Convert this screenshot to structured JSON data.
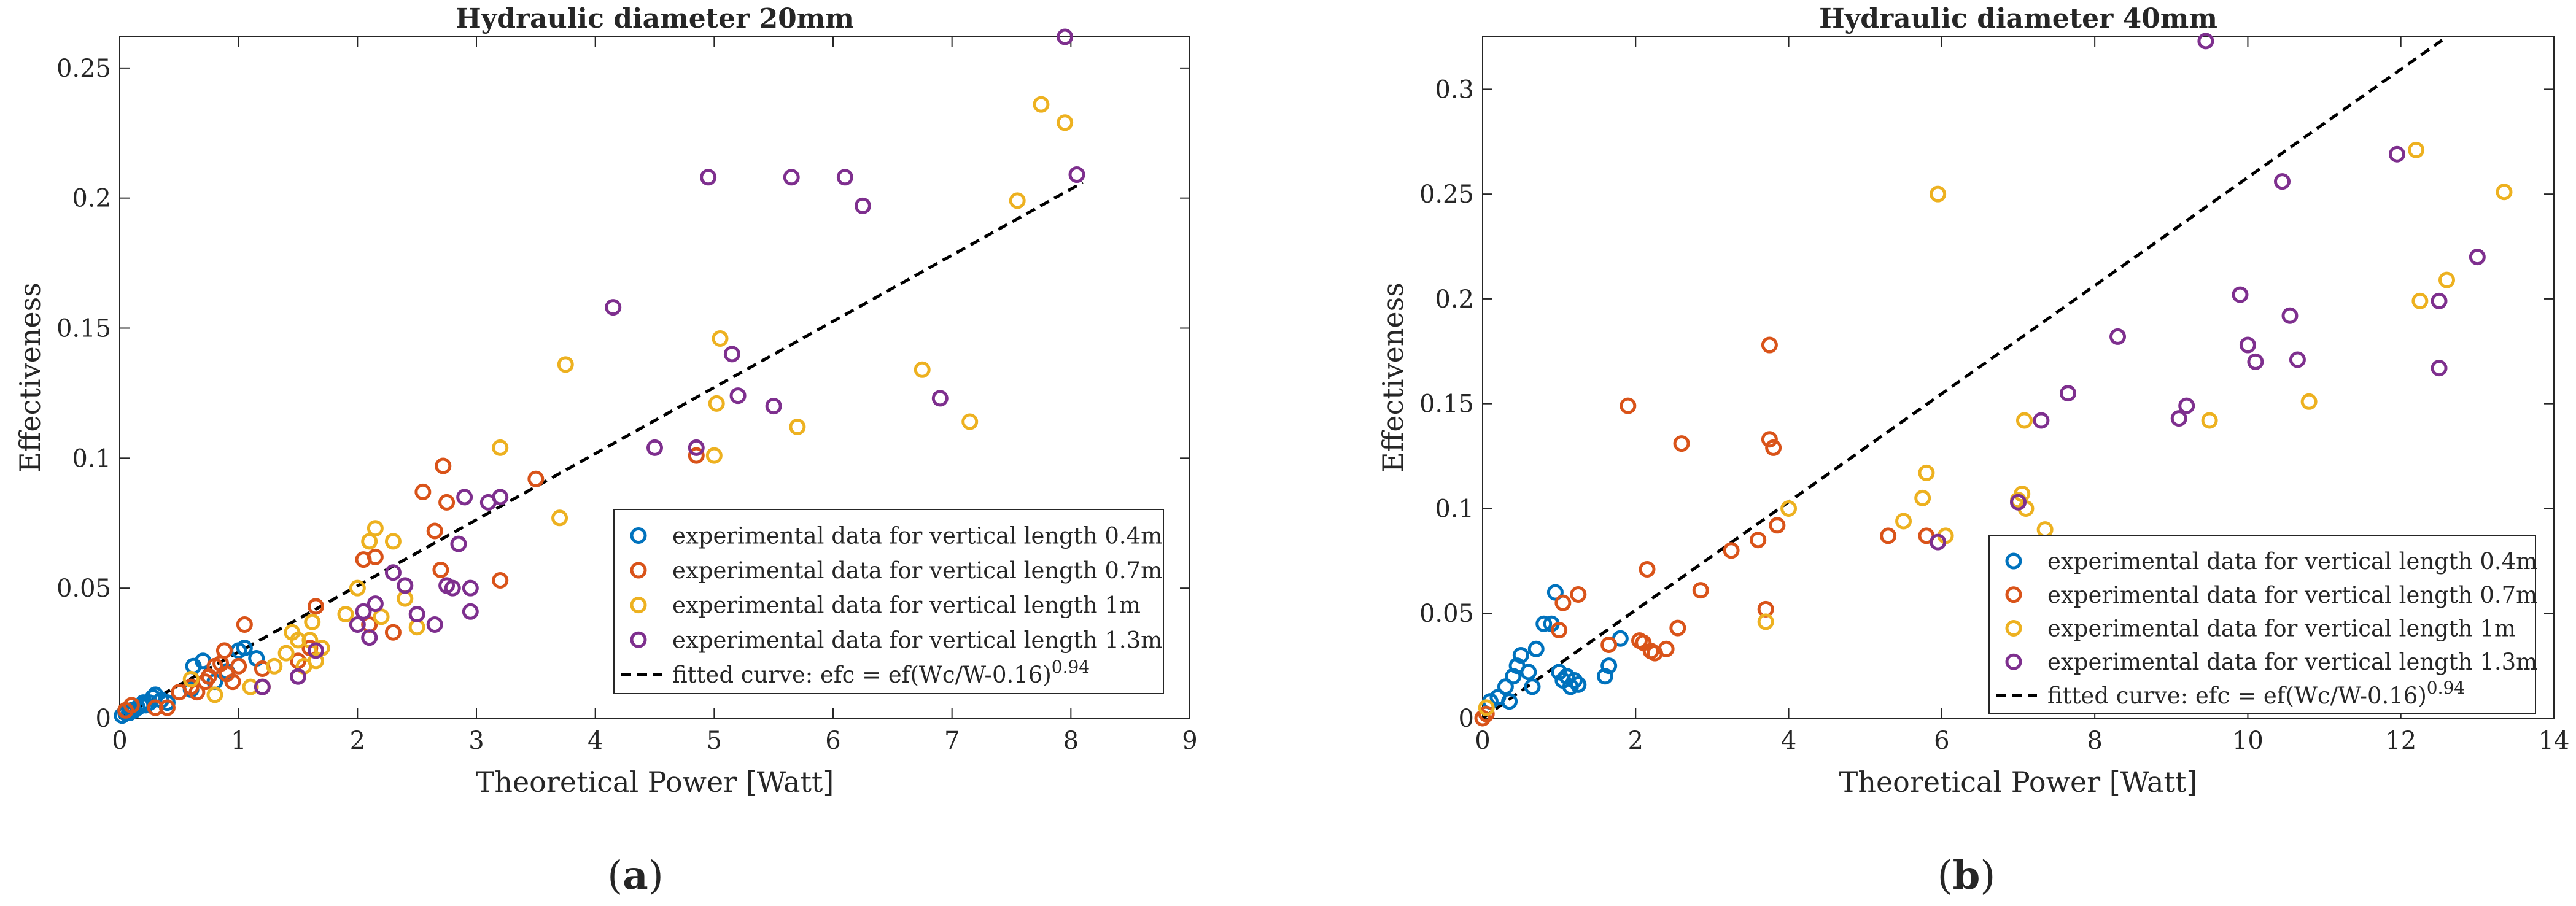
{
  "chart_data": [
    {
      "id": "a",
      "type": "scatter",
      "title": "Hydraulic diameter 20mm",
      "xlabel": "Theoretical Power [Watt]",
      "ylabel": "Effectiveness",
      "xlim": [
        0,
        9
      ],
      "ylim": [
        0,
        0.262
      ],
      "xticks": [
        0,
        1,
        2,
        3,
        4,
        5,
        6,
        7,
        8,
        9
      ],
      "xtick_labels": [
        "0",
        "1",
        "2",
        "3",
        "4",
        "5",
        "6",
        "7",
        "8",
        "9"
      ],
      "yticks": [
        0,
        0.05,
        0.1,
        0.15,
        0.2,
        0.25
      ],
      "ytick_labels": [
        "0",
        "0.05",
        "0.1",
        "0.15",
        "0.2",
        "0.25"
      ],
      "legend_position": "lower-right",
      "caption": {
        "open": "(",
        "letter": "a",
        "close": ")"
      },
      "series": [
        {
          "name": "experimental data for vertical length 0.4m",
          "color": "#0072BD",
          "points": [
            [
              0.02,
              0.001
            ],
            [
              0.05,
              0.002
            ],
            [
              0.08,
              0.002
            ],
            [
              0.1,
              0.003
            ],
            [
              0.12,
              0.003
            ],
            [
              0.15,
              0.004
            ],
            [
              0.18,
              0.005
            ],
            [
              0.2,
              0.006
            ],
            [
              0.22,
              0.005
            ],
            [
              0.25,
              0.006
            ],
            [
              0.28,
              0.008
            ],
            [
              0.3,
              0.009
            ],
            [
              0.35,
              0.007
            ],
            [
              0.4,
              0.006
            ],
            [
              0.6,
              0.011
            ],
            [
              0.62,
              0.02
            ],
            [
              0.7,
              0.022
            ],
            [
              0.75,
              0.016
            ],
            [
              0.8,
              0.014
            ],
            [
              0.9,
              0.018
            ],
            [
              1.0,
              0.026
            ],
            [
              1.05,
              0.027
            ],
            [
              1.15,
              0.023
            ]
          ]
        },
        {
          "name": "experimental data for vertical length 0.7m",
          "color": "#D95319",
          "points": [
            [
              0.05,
              0.003
            ],
            [
              0.1,
              0.005
            ],
            [
              0.3,
              0.004
            ],
            [
              0.4,
              0.004
            ],
            [
              0.5,
              0.01
            ],
            [
              0.6,
              0.012
            ],
            [
              0.65,
              0.01
            ],
            [
              0.72,
              0.014
            ],
            [
              0.75,
              0.016
            ],
            [
              0.8,
              0.02
            ],
            [
              0.85,
              0.021
            ],
            [
              0.88,
              0.026
            ],
            [
              0.9,
              0.017
            ],
            [
              0.95,
              0.014
            ],
            [
              1.0,
              0.02
            ],
            [
              1.05,
              0.036
            ],
            [
              1.2,
              0.019
            ],
            [
              1.5,
              0.022
            ],
            [
              1.6,
              0.027
            ],
            [
              1.65,
              0.043
            ],
            [
              2.05,
              0.061
            ],
            [
              2.1,
              0.036
            ],
            [
              2.15,
              0.062
            ],
            [
              2.3,
              0.033
            ],
            [
              2.55,
              0.087
            ],
            [
              2.65,
              0.072
            ],
            [
              2.7,
              0.057
            ],
            [
              2.72,
              0.097
            ],
            [
              2.75,
              0.083
            ],
            [
              3.2,
              0.053
            ],
            [
              3.5,
              0.092
            ],
            [
              4.85,
              0.101
            ]
          ]
        },
        {
          "name": "experimental data for vertical length 1m",
          "color": "#EDB120",
          "points": [
            [
              0.6,
              0.015
            ],
            [
              0.8,
              0.009
            ],
            [
              1.1,
              0.012
            ],
            [
              1.2,
              0.012
            ],
            [
              1.3,
              0.02
            ],
            [
              1.4,
              0.025
            ],
            [
              1.45,
              0.033
            ],
            [
              1.5,
              0.03
            ],
            [
              1.55,
              0.02
            ],
            [
              1.6,
              0.03
            ],
            [
              1.62,
              0.037
            ],
            [
              1.65,
              0.022
            ],
            [
              1.7,
              0.027
            ],
            [
              1.9,
              0.04
            ],
            [
              2.0,
              0.05
            ],
            [
              2.1,
              0.068
            ],
            [
              2.15,
              0.073
            ],
            [
              2.2,
              0.039
            ],
            [
              2.3,
              0.068
            ],
            [
              2.4,
              0.046
            ],
            [
              2.5,
              0.035
            ],
            [
              3.2,
              0.104
            ],
            [
              3.7,
              0.077
            ],
            [
              3.75,
              0.136
            ],
            [
              5.0,
              0.101
            ],
            [
              5.02,
              0.121
            ],
            [
              5.05,
              0.146
            ],
            [
              5.7,
              0.112
            ],
            [
              6.75,
              0.134
            ],
            [
              7.15,
              0.114
            ],
            [
              7.55,
              0.199
            ],
            [
              7.75,
              0.236
            ],
            [
              7.95,
              0.229
            ]
          ]
        },
        {
          "name": "experimental data for vertical length 1.3m",
          "color": "#7E2F8E",
          "points": [
            [
              1.2,
              0.012
            ],
            [
              1.5,
              0.016
            ],
            [
              1.65,
              0.026
            ],
            [
              2.0,
              0.036
            ],
            [
              2.05,
              0.041
            ],
            [
              2.1,
              0.031
            ],
            [
              2.15,
              0.044
            ],
            [
              2.3,
              0.056
            ],
            [
              2.4,
              0.051
            ],
            [
              2.5,
              0.04
            ],
            [
              2.65,
              0.036
            ],
            [
              2.75,
              0.051
            ],
            [
              2.8,
              0.05
            ],
            [
              2.85,
              0.067
            ],
            [
              2.9,
              0.085
            ],
            [
              2.95,
              0.041
            ],
            [
              2.95,
              0.05
            ],
            [
              3.1,
              0.083
            ],
            [
              3.2,
              0.085
            ],
            [
              4.15,
              0.158
            ],
            [
              4.5,
              0.104
            ],
            [
              4.85,
              0.104
            ],
            [
              4.95,
              0.208
            ],
            [
              5.15,
              0.14
            ],
            [
              5.2,
              0.124
            ],
            [
              5.5,
              0.12
            ],
            [
              5.65,
              0.208
            ],
            [
              6.1,
              0.208
            ],
            [
              6.25,
              0.197
            ],
            [
              6.9,
              0.123
            ],
            [
              7.95,
              0.262
            ],
            [
              8.05,
              0.209
            ]
          ]
        }
      ],
      "fitted_curve": {
        "label_prefix": "fitted curve: efc = ef(Wc/W-0.16)",
        "label_exponent": "0.94",
        "points": [
          [
            0,
            0
          ],
          [
            8.1,
            0.206
          ]
        ]
      }
    },
    {
      "id": "b",
      "type": "scatter",
      "title": "Hydraulic diameter 40mm",
      "xlabel": "Theoretical Power [Watt]",
      "ylabel": "Effectiveness",
      "xlim": [
        0,
        14
      ],
      "ylim": [
        0,
        0.325
      ],
      "xticks": [
        0,
        2,
        4,
        6,
        8,
        10,
        12,
        14
      ],
      "xtick_labels": [
        "0",
        "2",
        "4",
        "6",
        "8",
        "10",
        "12",
        "14"
      ],
      "yticks": [
        0,
        0.05,
        0.1,
        0.15,
        0.2,
        0.25,
        0.3
      ],
      "ytick_labels": [
        "0",
        "0.05",
        "0.1",
        "0.15",
        "0.2",
        "0.25",
        "0.3"
      ],
      "legend_position": "lower-right",
      "caption": {
        "open": "(",
        "letter": "b",
        "close": ")"
      },
      "series": [
        {
          "name": "experimental data for vertical length 0.4m",
          "color": "#0072BD",
          "points": [
            [
              0.1,
              0.008
            ],
            [
              0.2,
              0.01
            ],
            [
              0.3,
              0.015
            ],
            [
              0.35,
              0.008
            ],
            [
              0.4,
              0.02
            ],
            [
              0.45,
              0.025
            ],
            [
              0.5,
              0.03
            ],
            [
              0.6,
              0.022
            ],
            [
              0.65,
              0.015
            ],
            [
              0.7,
              0.033
            ],
            [
              0.8,
              0.045
            ],
            [
              0.9,
              0.045
            ],
            [
              0.95,
              0.06
            ],
            [
              1.0,
              0.022
            ],
            [
              1.05,
              0.018
            ],
            [
              1.1,
              0.02
            ],
            [
              1.15,
              0.015
            ],
            [
              1.2,
              0.018
            ],
            [
              1.25,
              0.016
            ],
            [
              1.6,
              0.02
            ],
            [
              1.65,
              0.025
            ],
            [
              1.8,
              0.038
            ]
          ]
        },
        {
          "name": "experimental data for vertical length 0.7m",
          "color": "#D95319",
          "points": [
            [
              0.0,
              0.0
            ],
            [
              0.05,
              0.002
            ],
            [
              1.0,
              0.042
            ],
            [
              1.05,
              0.055
            ],
            [
              1.25,
              0.059
            ],
            [
              1.65,
              0.035
            ],
            [
              1.9,
              0.149
            ],
            [
              2.05,
              0.037
            ],
            [
              2.1,
              0.036
            ],
            [
              2.15,
              0.071
            ],
            [
              2.2,
              0.032
            ],
            [
              2.25,
              0.031
            ],
            [
              2.4,
              0.033
            ],
            [
              2.55,
              0.043
            ],
            [
              2.6,
              0.131
            ],
            [
              2.85,
              0.061
            ],
            [
              3.25,
              0.08
            ],
            [
              3.6,
              0.085
            ],
            [
              3.7,
              0.052
            ],
            [
              3.75,
              0.133
            ],
            [
              3.75,
              0.178
            ],
            [
              3.8,
              0.129
            ],
            [
              3.85,
              0.092
            ],
            [
              5.3,
              0.087
            ],
            [
              5.8,
              0.087
            ]
          ]
        },
        {
          "name": "experimental data for vertical length 1m",
          "color": "#EDB120",
          "points": [
            [
              0.05,
              0.005
            ],
            [
              3.7,
              0.046
            ],
            [
              4.0,
              0.1
            ],
            [
              5.5,
              0.094
            ],
            [
              5.75,
              0.105
            ],
            [
              5.8,
              0.117
            ],
            [
              5.95,
              0.25
            ],
            [
              6.05,
              0.087
            ],
            [
              7.0,
              0.104
            ],
            [
              7.05,
              0.107
            ],
            [
              7.08,
              0.142
            ],
            [
              7.1,
              0.1
            ],
            [
              7.35,
              0.09
            ],
            [
              9.5,
              0.142
            ],
            [
              10.8,
              0.151
            ],
            [
              12.2,
              0.271
            ],
            [
              12.25,
              0.199
            ],
            [
              12.6,
              0.209
            ],
            [
              13.35,
              0.251
            ]
          ]
        },
        {
          "name": "experimental data for vertical length 1.3m",
          "color": "#7E2F8E",
          "points": [
            [
              5.95,
              0.084
            ],
            [
              7.0,
              0.103
            ],
            [
              7.3,
              0.142
            ],
            [
              7.65,
              0.155
            ],
            [
              8.3,
              0.182
            ],
            [
              9.1,
              0.143
            ],
            [
              9.2,
              0.149
            ],
            [
              9.45,
              0.323
            ],
            [
              9.9,
              0.202
            ],
            [
              10.0,
              0.178
            ],
            [
              10.1,
              0.17
            ],
            [
              10.45,
              0.256
            ],
            [
              10.55,
              0.192
            ],
            [
              10.65,
              0.171
            ],
            [
              11.95,
              0.269
            ],
            [
              12.5,
              0.167
            ],
            [
              12.5,
              0.199
            ],
            [
              13.0,
              0.22
            ]
          ]
        }
      ],
      "fitted_curve": {
        "label_prefix": "fitted curve: efc = ef(Wc/W-0.16)",
        "label_exponent": "0.94",
        "points": [
          [
            0,
            0
          ],
          [
            12.6,
            0.325
          ]
        ]
      }
    }
  ]
}
